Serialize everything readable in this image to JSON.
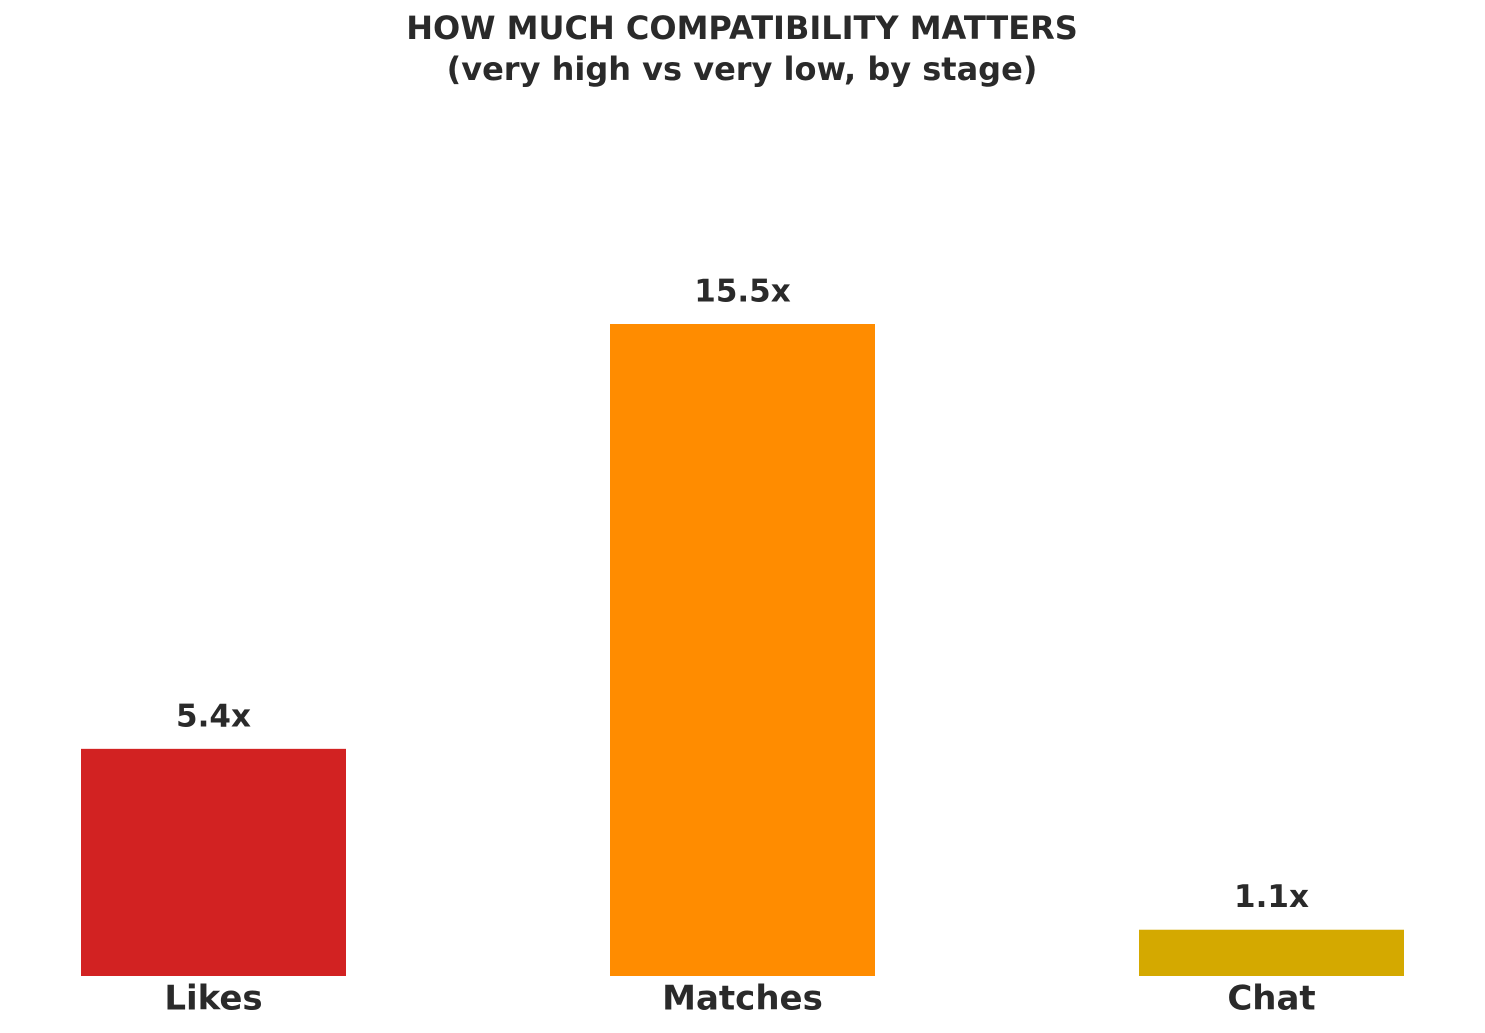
{
  "chart_data": {
    "type": "bar",
    "title": "HOW MUCH COMPATIBILITY MATTERS",
    "subtitle": "(very high vs very low, by stage)",
    "categories": [
      "Likes",
      "Matches",
      "Chat"
    ],
    "values": [
      5.4,
      15.5,
      1.1
    ],
    "value_labels": [
      "5.4x",
      "15.5x",
      "1.1x"
    ],
    "colors": [
      "#d22222",
      "#ff8c00",
      "#d4a900"
    ]
  }
}
